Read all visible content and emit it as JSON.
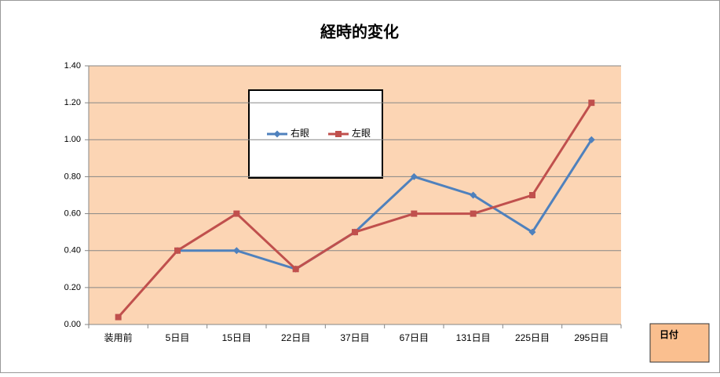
{
  "chart_data": {
    "type": "line",
    "title": "経時的変化",
    "x_label": "日付",
    "categories": [
      "装用前",
      "5日目",
      "15日目",
      "22日目",
      "37日目",
      "67日目",
      "131日目",
      "225日目",
      "295日目"
    ],
    "series": [
      {
        "name": "右眼",
        "color": "#4f81bd",
        "marker": "diamond",
        "values": [
          null,
          0.4,
          0.4,
          0.3,
          0.5,
          0.8,
          0.7,
          0.5,
          1.0
        ]
      },
      {
        "name": "左眼",
        "color": "#c0504d",
        "marker": "square",
        "values": [
          0.04,
          0.4,
          0.6,
          0.3,
          0.5,
          0.6,
          0.6,
          0.7,
          1.2
        ]
      }
    ],
    "ylim": [
      0,
      1.4
    ],
    "yticks": [
      {
        "value": 0,
        "label": "0.00"
      },
      {
        "value": 0.2,
        "label": "0.20"
      },
      {
        "value": 0.4,
        "label": "0.40"
      },
      {
        "value": 0.6,
        "label": "0.60"
      },
      {
        "value": 0.8,
        "label": "0.80"
      },
      {
        "value": 1.0,
        "label": "1.00"
      },
      {
        "value": 1.2,
        "label": "1.20"
      },
      {
        "value": 1.4,
        "label": "1.40"
      }
    ],
    "grid": true,
    "plot_background": "#fcd5b4"
  }
}
